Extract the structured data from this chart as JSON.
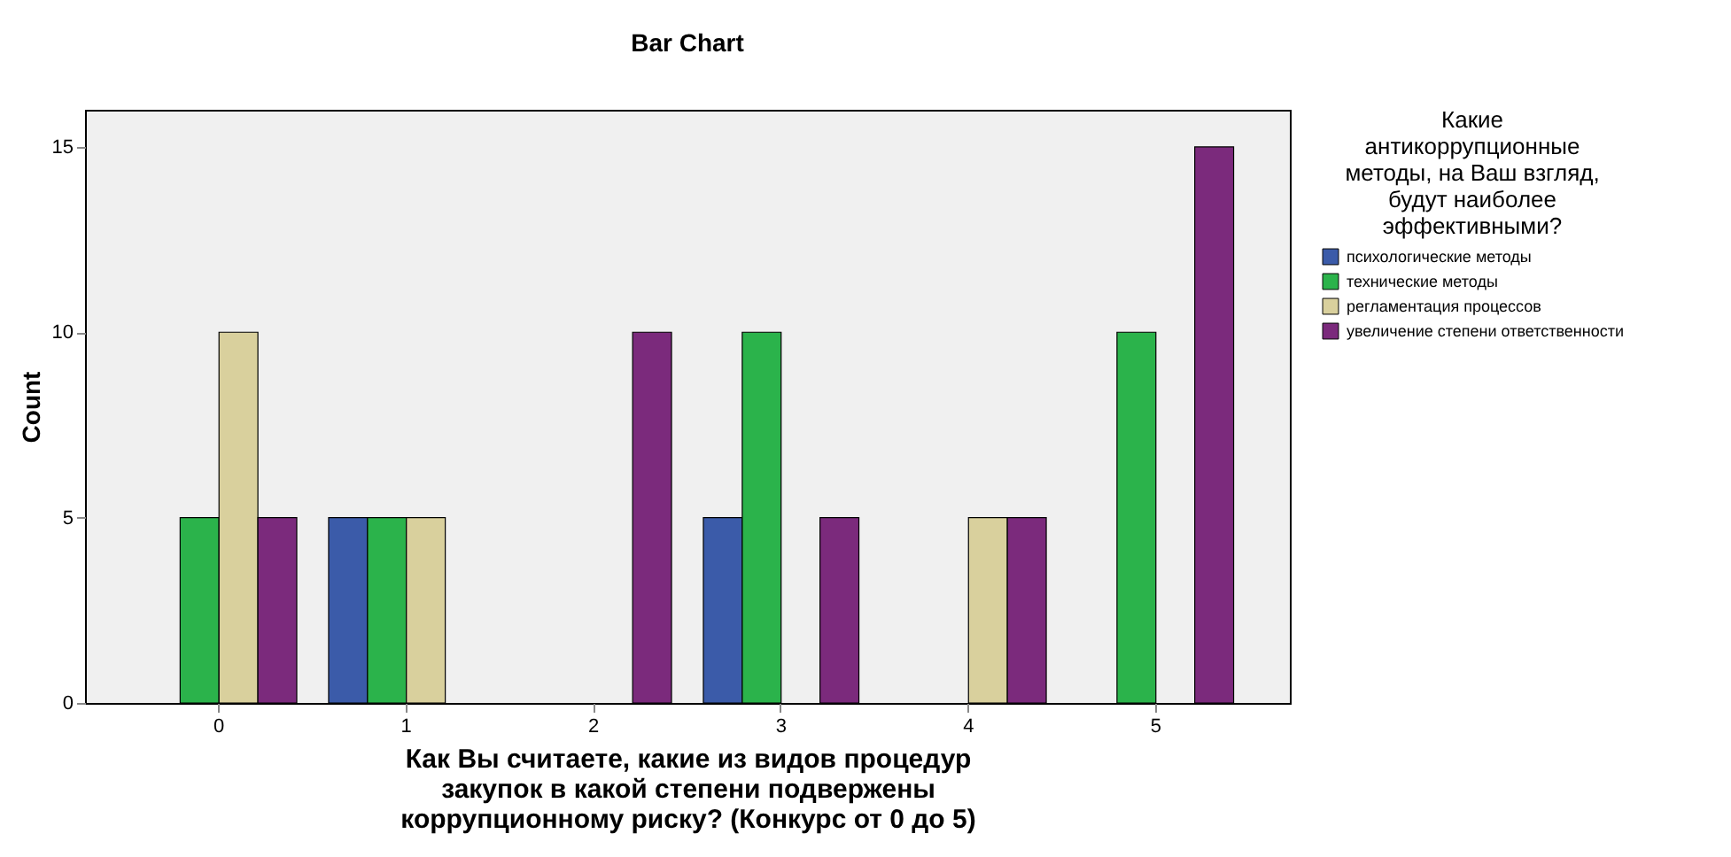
{
  "chart_data": {
    "type": "bar",
    "title": "Bar Chart",
    "xlabel": "Как Вы считаете, какие из видов процедур закупок в какой степени подвержены коррупционному риску? (Конкурс от 0 до 5)",
    "ylabel": "Count",
    "legend_title": "Какие антикоррупционные методы, на Ваш взгляд, будут наиболее эффективными?",
    "categories": [
      "0",
      "1",
      "2",
      "3",
      "4",
      "5"
    ],
    "series": [
      {
        "name": "психологические методы",
        "color": "#3b5ba9",
        "values": [
          null,
          5,
          null,
          5,
          null,
          null
        ]
      },
      {
        "name": "технические методы",
        "color": "#2bb34b",
        "values": [
          5,
          5,
          null,
          10,
          null,
          10
        ]
      },
      {
        "name": "регламентация процессов",
        "color": "#d9d09d",
        "values": [
          10,
          5,
          null,
          null,
          5,
          null
        ]
      },
      {
        "name": "увеличение степени ответственности",
        "color": "#7b2a7c",
        "values": [
          5,
          null,
          10,
          5,
          5,
          15
        ]
      }
    ],
    "ylim": [
      0,
      16
    ],
    "yticks": [
      0,
      5,
      10,
      15
    ],
    "legend": "right"
  }
}
